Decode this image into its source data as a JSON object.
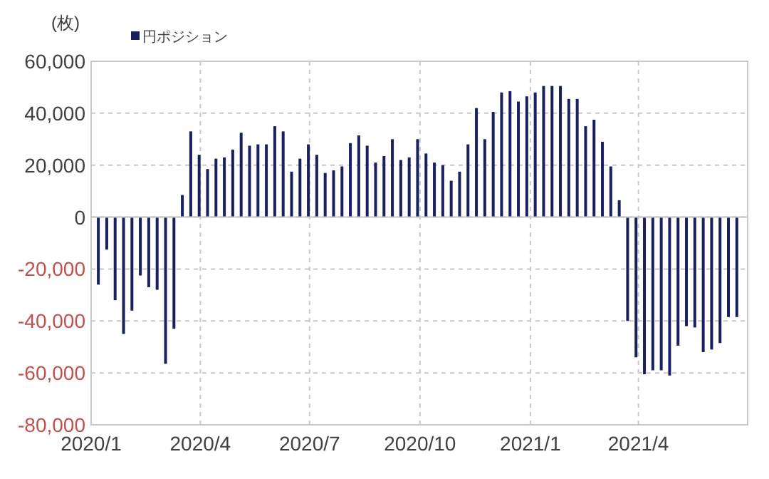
{
  "chart_data": {
    "type": "bar",
    "ylabel": "(枚)",
    "legend": "top left",
    "grid": true,
    "x": [
      "2020-01-07",
      "2020-01-14",
      "2020-01-21",
      "2020-01-28",
      "2020-02-04",
      "2020-02-11",
      "2020-02-18",
      "2020-02-25",
      "2020-03-03",
      "2020-03-10",
      "2020-03-17",
      "2020-03-24",
      "2020-03-31",
      "2020-04-07",
      "2020-04-14",
      "2020-04-21",
      "2020-04-28",
      "2020-05-05",
      "2020-05-12",
      "2020-05-19",
      "2020-05-26",
      "2020-06-02",
      "2020-06-09",
      "2020-06-16",
      "2020-06-23",
      "2020-06-30",
      "2020-07-07",
      "2020-07-14",
      "2020-07-21",
      "2020-07-28",
      "2020-08-04",
      "2020-08-11",
      "2020-08-18",
      "2020-08-25",
      "2020-09-01",
      "2020-09-08",
      "2020-09-15",
      "2020-09-22",
      "2020-09-29",
      "2020-10-06",
      "2020-10-13",
      "2020-10-20",
      "2020-10-27",
      "2020-11-03",
      "2020-11-10",
      "2020-11-17",
      "2020-11-24",
      "2020-12-01",
      "2020-12-08",
      "2020-12-15",
      "2020-12-22",
      "2020-12-29",
      "2021-01-05",
      "2021-01-12",
      "2021-01-19",
      "2021-01-26",
      "2021-02-02",
      "2021-02-09",
      "2021-02-16",
      "2021-02-23",
      "2021-03-02",
      "2021-03-09",
      "2021-03-16",
      "2021-03-23",
      "2021-03-30",
      "2021-04-06",
      "2021-04-13",
      "2021-04-20",
      "2021-04-27",
      "2021-05-04",
      "2021-05-11",
      "2021-05-18",
      "2021-05-25",
      "2021-06-01",
      "2021-06-08",
      "2021-06-15",
      "2021-06-22"
    ],
    "series": [
      {
        "name": "円ポジション",
        "color": "#1a1f5e",
        "values": [
          -26000,
          -12500,
          -32000,
          -45000,
          -36000,
          -22500,
          -27000,
          -28000,
          -56500,
          -43000,
          8500,
          33000,
          24000,
          18500,
          22500,
          23000,
          26000,
          32500,
          27500,
          28000,
          28000,
          35000,
          33000,
          17500,
          22500,
          28000,
          24000,
          17000,
          18000,
          19500,
          28500,
          31500,
          27500,
          21000,
          23500,
          30000,
          22000,
          23000,
          30000,
          24500,
          21000,
          20000,
          14000,
          17500,
          28000,
          42000,
          30000,
          40500,
          48000,
          48500,
          44500,
          46500,
          48000,
          50500,
          50500,
          50500,
          45500,
          45500,
          35000,
          37500,
          29000,
          19500,
          6500,
          -40000,
          -54000,
          -60500,
          -59000,
          -59000,
          -61000,
          -49500,
          -42000,
          -42500,
          -52000,
          -51000,
          -48500,
          -38500,
          -38500
        ]
      }
    ],
    "xlim": [
      "2020-01-01",
      "2021-07-01"
    ],
    "xticks": [
      {
        "value": "2020-01-01",
        "label": "2020/1"
      },
      {
        "value": "2020-04-01",
        "label": "2020/4"
      },
      {
        "value": "2020-07-01",
        "label": "2020/7"
      },
      {
        "value": "2020-10-01",
        "label": "2020/10"
      },
      {
        "value": "2021-01-01",
        "label": "2021/1"
      },
      {
        "value": "2021-04-01",
        "label": "2021/4"
      }
    ],
    "ylim": [
      -80000,
      60000
    ],
    "yticks": [
      {
        "value": -80000,
        "label": "-80,000"
      },
      {
        "value": -60000,
        "label": "-60,000"
      },
      {
        "value": -40000,
        "label": "-40,000"
      },
      {
        "value": -20000,
        "label": "-20,000"
      },
      {
        "value": 0,
        "label": "0"
      },
      {
        "value": 20000,
        "label": "20,000"
      },
      {
        "value": 40000,
        "label": "40,000"
      },
      {
        "value": 60000,
        "label": "60,000"
      }
    ]
  }
}
